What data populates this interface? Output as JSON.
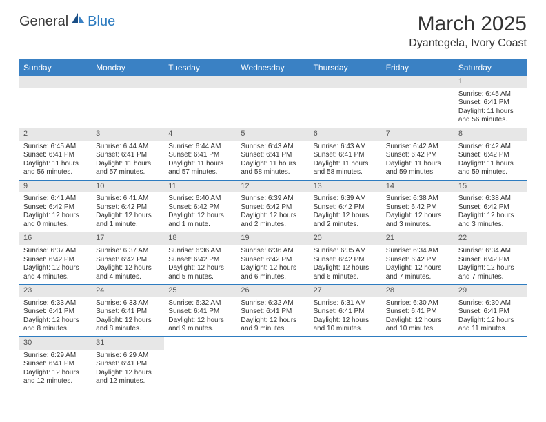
{
  "logo": {
    "main": "General",
    "accent": "Blue"
  },
  "title": "March 2025",
  "subtitle": "Dyantegela, Ivory Coast",
  "day_headers": [
    "Sunday",
    "Monday",
    "Tuesday",
    "Wednesday",
    "Thursday",
    "Friday",
    "Saturday"
  ],
  "colors": {
    "header_bg": "#3a81c4",
    "daynum_bg": "#e7e7e7",
    "rule": "#2e7cc0",
    "text": "#333333",
    "accent": "#2e7cc0"
  },
  "weeks": [
    [
      null,
      null,
      null,
      null,
      null,
      null,
      {
        "n": "1",
        "sr": "Sunrise: 6:45 AM",
        "ss": "Sunset: 6:41 PM",
        "dl": "Daylight: 11 hours and 56 minutes."
      }
    ],
    [
      {
        "n": "2",
        "sr": "Sunrise: 6:45 AM",
        "ss": "Sunset: 6:41 PM",
        "dl": "Daylight: 11 hours and 56 minutes."
      },
      {
        "n": "3",
        "sr": "Sunrise: 6:44 AM",
        "ss": "Sunset: 6:41 PM",
        "dl": "Daylight: 11 hours and 57 minutes."
      },
      {
        "n": "4",
        "sr": "Sunrise: 6:44 AM",
        "ss": "Sunset: 6:41 PM",
        "dl": "Daylight: 11 hours and 57 minutes."
      },
      {
        "n": "5",
        "sr": "Sunrise: 6:43 AM",
        "ss": "Sunset: 6:41 PM",
        "dl": "Daylight: 11 hours and 58 minutes."
      },
      {
        "n": "6",
        "sr": "Sunrise: 6:43 AM",
        "ss": "Sunset: 6:41 PM",
        "dl": "Daylight: 11 hours and 58 minutes."
      },
      {
        "n": "7",
        "sr": "Sunrise: 6:42 AM",
        "ss": "Sunset: 6:42 PM",
        "dl": "Daylight: 11 hours and 59 minutes."
      },
      {
        "n": "8",
        "sr": "Sunrise: 6:42 AM",
        "ss": "Sunset: 6:42 PM",
        "dl": "Daylight: 11 hours and 59 minutes."
      }
    ],
    [
      {
        "n": "9",
        "sr": "Sunrise: 6:41 AM",
        "ss": "Sunset: 6:42 PM",
        "dl": "Daylight: 12 hours and 0 minutes."
      },
      {
        "n": "10",
        "sr": "Sunrise: 6:41 AM",
        "ss": "Sunset: 6:42 PM",
        "dl": "Daylight: 12 hours and 1 minute."
      },
      {
        "n": "11",
        "sr": "Sunrise: 6:40 AM",
        "ss": "Sunset: 6:42 PM",
        "dl": "Daylight: 12 hours and 1 minute."
      },
      {
        "n": "12",
        "sr": "Sunrise: 6:39 AM",
        "ss": "Sunset: 6:42 PM",
        "dl": "Daylight: 12 hours and 2 minutes."
      },
      {
        "n": "13",
        "sr": "Sunrise: 6:39 AM",
        "ss": "Sunset: 6:42 PM",
        "dl": "Daylight: 12 hours and 2 minutes."
      },
      {
        "n": "14",
        "sr": "Sunrise: 6:38 AM",
        "ss": "Sunset: 6:42 PM",
        "dl": "Daylight: 12 hours and 3 minutes."
      },
      {
        "n": "15",
        "sr": "Sunrise: 6:38 AM",
        "ss": "Sunset: 6:42 PM",
        "dl": "Daylight: 12 hours and 3 minutes."
      }
    ],
    [
      {
        "n": "16",
        "sr": "Sunrise: 6:37 AM",
        "ss": "Sunset: 6:42 PM",
        "dl": "Daylight: 12 hours and 4 minutes."
      },
      {
        "n": "17",
        "sr": "Sunrise: 6:37 AM",
        "ss": "Sunset: 6:42 PM",
        "dl": "Daylight: 12 hours and 4 minutes."
      },
      {
        "n": "18",
        "sr": "Sunrise: 6:36 AM",
        "ss": "Sunset: 6:42 PM",
        "dl": "Daylight: 12 hours and 5 minutes."
      },
      {
        "n": "19",
        "sr": "Sunrise: 6:36 AM",
        "ss": "Sunset: 6:42 PM",
        "dl": "Daylight: 12 hours and 6 minutes."
      },
      {
        "n": "20",
        "sr": "Sunrise: 6:35 AM",
        "ss": "Sunset: 6:42 PM",
        "dl": "Daylight: 12 hours and 6 minutes."
      },
      {
        "n": "21",
        "sr": "Sunrise: 6:34 AM",
        "ss": "Sunset: 6:42 PM",
        "dl": "Daylight: 12 hours and 7 minutes."
      },
      {
        "n": "22",
        "sr": "Sunrise: 6:34 AM",
        "ss": "Sunset: 6:42 PM",
        "dl": "Daylight: 12 hours and 7 minutes."
      }
    ],
    [
      {
        "n": "23",
        "sr": "Sunrise: 6:33 AM",
        "ss": "Sunset: 6:41 PM",
        "dl": "Daylight: 12 hours and 8 minutes."
      },
      {
        "n": "24",
        "sr": "Sunrise: 6:33 AM",
        "ss": "Sunset: 6:41 PM",
        "dl": "Daylight: 12 hours and 8 minutes."
      },
      {
        "n": "25",
        "sr": "Sunrise: 6:32 AM",
        "ss": "Sunset: 6:41 PM",
        "dl": "Daylight: 12 hours and 9 minutes."
      },
      {
        "n": "26",
        "sr": "Sunrise: 6:32 AM",
        "ss": "Sunset: 6:41 PM",
        "dl": "Daylight: 12 hours and 9 minutes."
      },
      {
        "n": "27",
        "sr": "Sunrise: 6:31 AM",
        "ss": "Sunset: 6:41 PM",
        "dl": "Daylight: 12 hours and 10 minutes."
      },
      {
        "n": "28",
        "sr": "Sunrise: 6:30 AM",
        "ss": "Sunset: 6:41 PM",
        "dl": "Daylight: 12 hours and 10 minutes."
      },
      {
        "n": "29",
        "sr": "Sunrise: 6:30 AM",
        "ss": "Sunset: 6:41 PM",
        "dl": "Daylight: 12 hours and 11 minutes."
      }
    ],
    [
      {
        "n": "30",
        "sr": "Sunrise: 6:29 AM",
        "ss": "Sunset: 6:41 PM",
        "dl": "Daylight: 12 hours and 12 minutes."
      },
      {
        "n": "31",
        "sr": "Sunrise: 6:29 AM",
        "ss": "Sunset: 6:41 PM",
        "dl": "Daylight: 12 hours and 12 minutes."
      },
      null,
      null,
      null,
      null,
      null
    ]
  ]
}
